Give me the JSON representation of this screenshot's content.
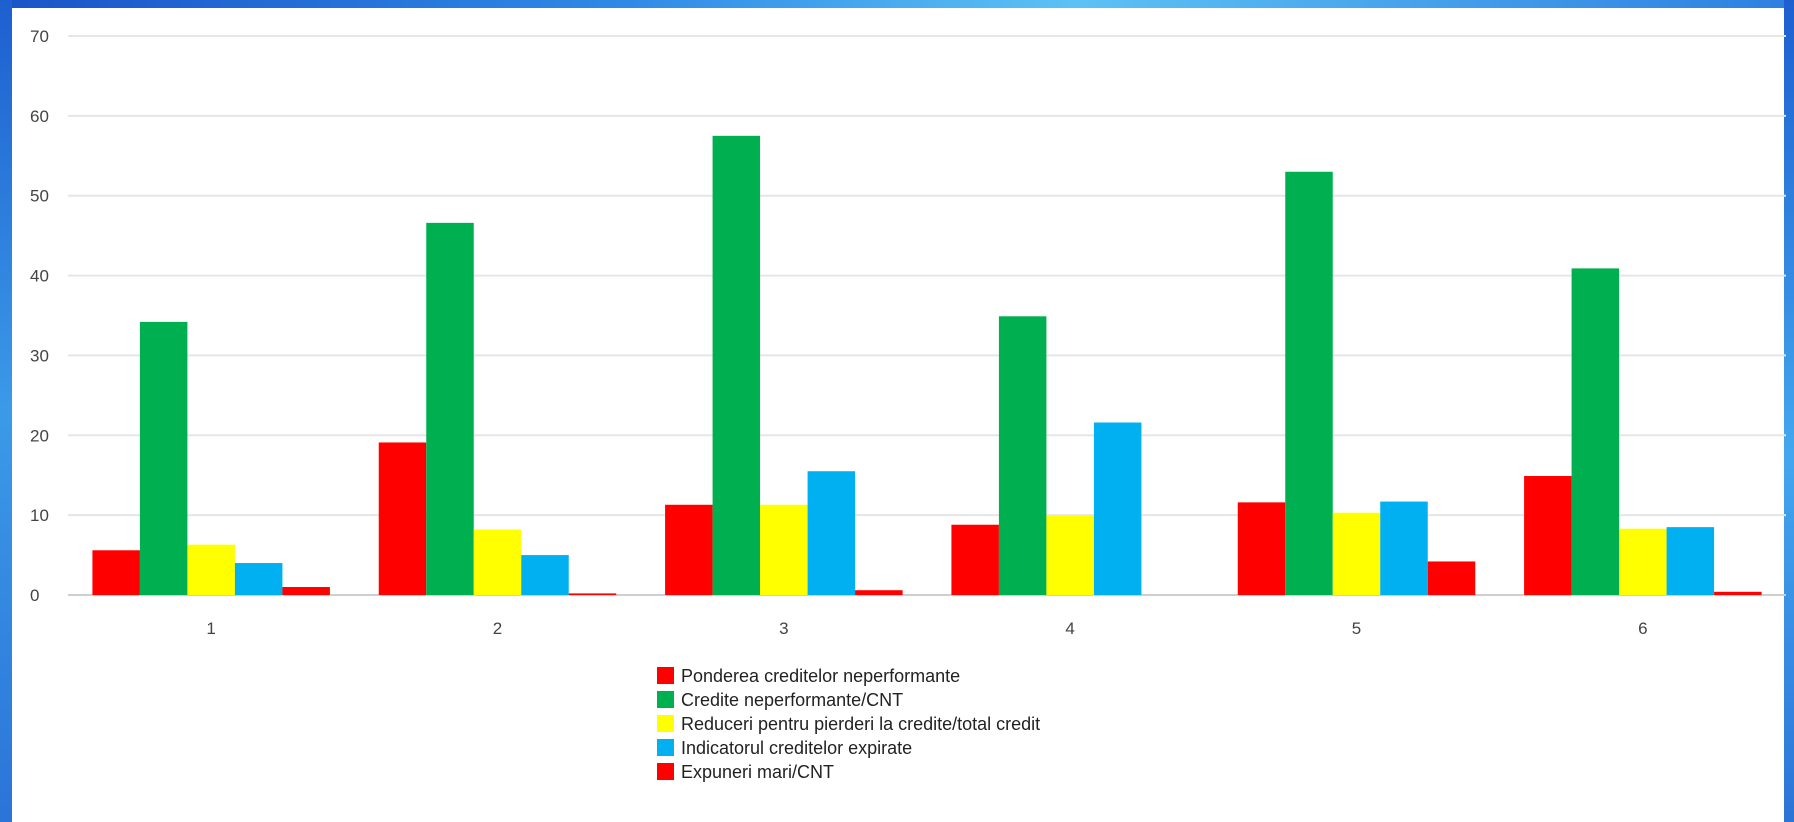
{
  "chart_data": {
    "type": "bar",
    "categories": [
      "1",
      "2",
      "3",
      "4",
      "5",
      "6"
    ],
    "series": [
      {
        "name": "Ponderea creditelor neperformante",
        "color": "#ff0000",
        "values": [
          5.6,
          19.1,
          11.3,
          8.8,
          11.6,
          14.9
        ]
      },
      {
        "name": "Credite neperformante/CNT",
        "color": "#00b050",
        "values": [
          34.2,
          46.6,
          57.5,
          34.9,
          53.0,
          40.9
        ]
      },
      {
        "name": "Reduceri pentru pierderi la credite/total credit",
        "color": "#ffff00",
        "values": [
          6.3,
          8.2,
          11.3,
          9.9,
          10.3,
          8.3
        ]
      },
      {
        "name": "Indicatorul creditelor expirate",
        "color": "#00b0f0",
        "values": [
          4.0,
          5.0,
          15.5,
          21.6,
          11.7,
          8.5
        ]
      },
      {
        "name": "Expuneri mari/CNT",
        "color": "#ff0000",
        "values": [
          1.0,
          0.2,
          0.6,
          0.0,
          4.2,
          0.4
        ]
      }
    ],
    "yticks": [
      "0",
      "10",
      "20",
      "30",
      "40",
      "50",
      "60",
      "70"
    ],
    "ylim": [
      0,
      70
    ],
    "grid": true,
    "legend_position": "bottom-center",
    "title": "",
    "xlabel": "",
    "ylabel": ""
  }
}
